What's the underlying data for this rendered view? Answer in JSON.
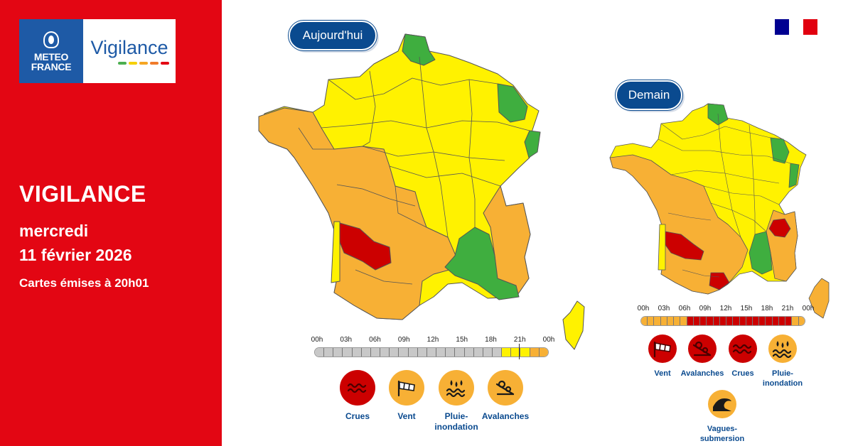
{
  "brand": {
    "logo_line1": "METEO",
    "logo_line2": "FRANCE",
    "product": "Vigilance",
    "bar_colors": [
      "#4caf50",
      "#f5d000",
      "#f5a623",
      "#f07b2a",
      "#e30613"
    ]
  },
  "headline": {
    "title": "VIGILANCE",
    "day": "mercredi",
    "date": "11 février 2026",
    "issued": "Cartes émises à 20h01"
  },
  "colors": {
    "red_panel": "#e30613",
    "navy": "#0a4a8f",
    "green": "#3fae3f",
    "yellow": "#fff200",
    "orange": "#f7b035",
    "red": "#cc0000",
    "grey": "#c8c8c8"
  },
  "flag_colors": [
    "#000091",
    "#ffffff",
    "#e1000f"
  ],
  "today": {
    "label": "Aujourd'hui",
    "timeline_labels": [
      "00h",
      "03h",
      "06h",
      "09h",
      "12h",
      "15h",
      "18h",
      "21h",
      "00h"
    ],
    "timeline_levels": [
      "grey",
      "grey",
      "grey",
      "grey",
      "grey",
      "grey",
      "grey",
      "grey",
      "grey",
      "grey",
      "grey",
      "grey",
      "grey",
      "grey",
      "grey",
      "grey",
      "grey",
      "grey",
      "grey",
      "grey",
      "yellow",
      "yellow",
      "yellow",
      "orange",
      "orange"
    ],
    "hazards": [
      {
        "name": "Crues",
        "level": "red",
        "icon": "flood-icon"
      },
      {
        "name": "Vent",
        "level": "orange",
        "icon": "wind-icon"
      },
      {
        "name": "Pluie-\ninondation",
        "level": "orange",
        "icon": "rain-flood-icon"
      },
      {
        "name": "Avalanches",
        "level": "orange",
        "icon": "avalanche-icon"
      }
    ]
  },
  "tomorrow": {
    "label": "Demain",
    "timeline_labels": [
      "00h",
      "03h",
      "06h",
      "09h",
      "12h",
      "15h",
      "18h",
      "21h",
      "00h"
    ],
    "timeline_levels": [
      "orange",
      "orange",
      "orange",
      "orange",
      "orange",
      "orange",
      "orange",
      "red",
      "red",
      "red",
      "red",
      "red",
      "red",
      "red",
      "red",
      "red",
      "red",
      "red",
      "red",
      "red",
      "red",
      "red",
      "red",
      "orange",
      "orange"
    ],
    "hazards": [
      {
        "name": "Vent",
        "level": "red",
        "icon": "wind-icon"
      },
      {
        "name": "Avalanches",
        "level": "red",
        "icon": "avalanche-icon"
      },
      {
        "name": "Crues",
        "level": "red",
        "icon": "flood-icon"
      },
      {
        "name": "Pluie-\ninondation",
        "level": "orange",
        "icon": "rain-flood-icon"
      },
      {
        "name": "Vagues-\nsubmersion",
        "level": "orange",
        "icon": "wave-submersion-icon"
      }
    ]
  }
}
